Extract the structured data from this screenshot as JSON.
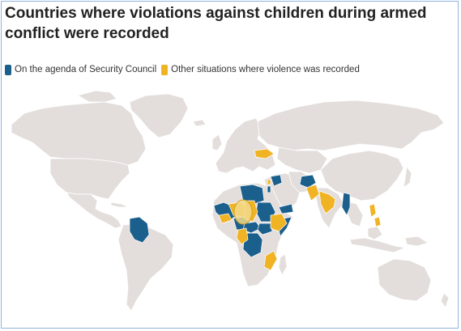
{
  "title": "Countries where violations against children during armed conflict were recorded",
  "legend": [
    {
      "label": "On the agenda of Security Council",
      "color": "#1b5f8c"
    },
    {
      "label": "Other situations where violence was recorded",
      "color": "#f0b323"
    }
  ],
  "colors": {
    "land": "#e3dedc",
    "border": "#ffffff",
    "ocean": "#ffffff",
    "agenda": "#1b5f8c",
    "other": "#f0b323"
  },
  "regions": {
    "agenda": [
      "Colombia",
      "Mali",
      "Central African Republic",
      "Sudan",
      "South Sudan",
      "Democratic Republic of the Congo",
      "Somalia",
      "Nigeria",
      "Libya",
      "Syria",
      "Iraq",
      "Israel and State of Palestine",
      "Yemen",
      "Afghanistan",
      "Myanmar"
    ],
    "other": [
      "Ukraine",
      "Burkina Faso",
      "Niger",
      "Cameroon",
      "Chad",
      "Ethiopia",
      "Mozambique",
      "Lebanon",
      "Pakistan",
      "India",
      "Philippines",
      "Lake Chad Basin"
    ]
  }
}
